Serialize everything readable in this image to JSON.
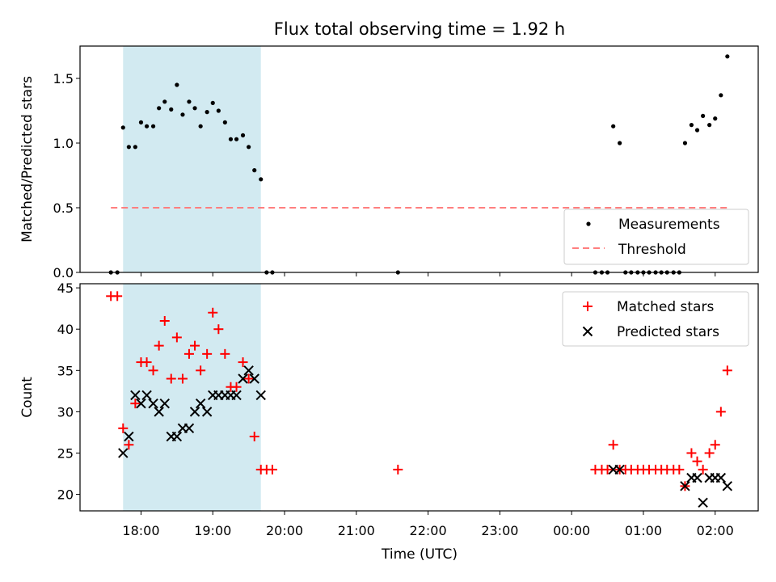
{
  "chart_data": {
    "type": "scatter",
    "title": "Flux total observing time = 1.92 h",
    "xlabel": "Time (UTC)",
    "x_unit": "hours since 18:00 UTC",
    "xlim": [
      -0.85,
      8.6
    ],
    "x_ticks": [
      {
        "value": 0,
        "label": "18:00"
      },
      {
        "value": 1,
        "label": "19:00"
      },
      {
        "value": 2,
        "label": "20:00"
      },
      {
        "value": 3,
        "label": "21:00"
      },
      {
        "value": 4,
        "label": "22:00"
      },
      {
        "value": 5,
        "label": "23:00"
      },
      {
        "value": 6,
        "label": "00:00"
      },
      {
        "value": 7,
        "label": "01:00"
      },
      {
        "value": 8,
        "label": "02:00"
      }
    ],
    "shaded_span": {
      "x_start": -0.25,
      "x_end": 1.67,
      "color": "#add8e6"
    },
    "panels": [
      {
        "ylabel": "Matched/Predicted stars",
        "ylim": [
          0,
          1.75
        ],
        "y_ticks": [
          {
            "value": 0,
            "label": "0.0"
          },
          {
            "value": 0.5,
            "label": "0.5"
          },
          {
            "value": 1.0,
            "label": "1.0"
          },
          {
            "value": 1.5,
            "label": "1.5"
          }
        ],
        "legend": {
          "position": "lower-right"
        },
        "series": [
          {
            "name": "Measurements",
            "marker": "dot",
            "color": "#000000",
            "points": [
              [
                -0.42,
                0.0
              ],
              [
                -0.33,
                0.0
              ],
              [
                -0.25,
                1.12
              ],
              [
                -0.17,
                0.97
              ],
              [
                -0.08,
                0.97
              ],
              [
                0.0,
                1.16
              ],
              [
                0.08,
                1.13
              ],
              [
                0.17,
                1.13
              ],
              [
                0.25,
                1.27
              ],
              [
                0.33,
                1.32
              ],
              [
                0.42,
                1.26
              ],
              [
                0.5,
                1.45
              ],
              [
                0.58,
                1.22
              ],
              [
                0.67,
                1.32
              ],
              [
                0.75,
                1.27
              ],
              [
                0.83,
                1.13
              ],
              [
                0.92,
                1.24
              ],
              [
                1.0,
                1.31
              ],
              [
                1.08,
                1.25
              ],
              [
                1.17,
                1.16
              ],
              [
                1.25,
                1.03
              ],
              [
                1.33,
                1.03
              ],
              [
                1.42,
                1.06
              ],
              [
                1.5,
                0.97
              ],
              [
                1.58,
                0.79
              ],
              [
                1.67,
                0.72
              ],
              [
                1.75,
                0.0
              ],
              [
                1.83,
                0.0
              ],
              [
                3.58,
                0.0
              ],
              [
                6.33,
                0.0
              ],
              [
                6.42,
                0.0
              ],
              [
                6.5,
                0.0
              ],
              [
                6.58,
                1.13
              ],
              [
                6.67,
                1.0
              ],
              [
                6.75,
                0.0
              ],
              [
                6.83,
                0.0
              ],
              [
                6.92,
                0.0
              ],
              [
                7.0,
                0.0
              ],
              [
                7.08,
                0.0
              ],
              [
                7.17,
                0.0
              ],
              [
                7.25,
                0.0
              ],
              [
                7.33,
                0.0
              ],
              [
                7.42,
                0.0
              ],
              [
                7.5,
                0.0
              ],
              [
                7.58,
                1.0
              ],
              [
                7.67,
                1.14
              ],
              [
                7.75,
                1.1
              ],
              [
                7.83,
                1.21
              ],
              [
                7.92,
                1.14
              ],
              [
                8.0,
                1.19
              ],
              [
                8.08,
                1.37
              ],
              [
                8.17,
                1.67
              ]
            ]
          },
          {
            "name": "Threshold",
            "marker": "dashed-line",
            "color": "#ff7f7f",
            "y": 0.5,
            "x_range": [
              -0.42,
              8.17
            ]
          }
        ]
      },
      {
        "ylabel": "Count",
        "ylim": [
          18,
          45.5
        ],
        "y_ticks": [
          {
            "value": 20,
            "label": "20"
          },
          {
            "value": 25,
            "label": "25"
          },
          {
            "value": 30,
            "label": "30"
          },
          {
            "value": 35,
            "label": "35"
          },
          {
            "value": 40,
            "label": "40"
          },
          {
            "value": 45,
            "label": "45"
          }
        ],
        "legend": {
          "position": "top-right"
        },
        "series": [
          {
            "name": "Matched stars",
            "marker": "plus",
            "color": "#ff0000",
            "points": [
              [
                -0.42,
                44
              ],
              [
                -0.33,
                44
              ],
              [
                -0.25,
                28
              ],
              [
                -0.17,
                26
              ],
              [
                -0.08,
                31
              ],
              [
                0.0,
                36
              ],
              [
                0.08,
                36
              ],
              [
                0.17,
                35
              ],
              [
                0.25,
                38
              ],
              [
                0.33,
                41
              ],
              [
                0.42,
                34
              ],
              [
                0.5,
                39
              ],
              [
                0.58,
                34
              ],
              [
                0.67,
                37
              ],
              [
                0.75,
                38
              ],
              [
                0.83,
                35
              ],
              [
                0.92,
                37
              ],
              [
                1.0,
                42
              ],
              [
                1.08,
                40
              ],
              [
                1.17,
                37
              ],
              [
                1.25,
                33
              ],
              [
                1.33,
                33
              ],
              [
                1.42,
                36
              ],
              [
                1.5,
                34
              ],
              [
                1.58,
                27
              ],
              [
                1.67,
                23
              ],
              [
                1.75,
                23
              ],
              [
                1.83,
                23
              ],
              [
                3.58,
                23
              ],
              [
                6.33,
                23
              ],
              [
                6.42,
                23
              ],
              [
                6.5,
                23
              ],
              [
                6.58,
                26
              ],
              [
                6.67,
                23
              ],
              [
                6.75,
                23
              ],
              [
                6.83,
                23
              ],
              [
                6.92,
                23
              ],
              [
                7.0,
                23
              ],
              [
                7.08,
                23
              ],
              [
                7.17,
                23
              ],
              [
                7.25,
                23
              ],
              [
                7.33,
                23
              ],
              [
                7.42,
                23
              ],
              [
                7.5,
                23
              ],
              [
                7.58,
                21
              ],
              [
                7.67,
                25
              ],
              [
                7.75,
                24
              ],
              [
                7.83,
                23
              ],
              [
                7.92,
                25
              ],
              [
                8.0,
                26
              ],
              [
                8.08,
                30
              ],
              [
                8.17,
                35
              ]
            ]
          },
          {
            "name": "Predicted stars",
            "marker": "x",
            "color": "#000000",
            "points": [
              [
                -0.25,
                25
              ],
              [
                -0.17,
                27
              ],
              [
                -0.08,
                32
              ],
              [
                0.0,
                31
              ],
              [
                0.08,
                32
              ],
              [
                0.17,
                31
              ],
              [
                0.25,
                30
              ],
              [
                0.33,
                31
              ],
              [
                0.42,
                27
              ],
              [
                0.5,
                27
              ],
              [
                0.58,
                28
              ],
              [
                0.67,
                28
              ],
              [
                0.75,
                30
              ],
              [
                0.83,
                31
              ],
              [
                0.92,
                30
              ],
              [
                1.0,
                32
              ],
              [
                1.08,
                32
              ],
              [
                1.17,
                32
              ],
              [
                1.25,
                32
              ],
              [
                1.33,
                32
              ],
              [
                1.42,
                34
              ],
              [
                1.5,
                35
              ],
              [
                1.58,
                34
              ],
              [
                1.67,
                32
              ],
              [
                6.58,
                23
              ],
              [
                6.67,
                23
              ],
              [
                7.58,
                21
              ],
              [
                7.67,
                22
              ],
              [
                7.75,
                22
              ],
              [
                7.83,
                19
              ],
              [
                7.92,
                22
              ],
              [
                8.0,
                22
              ],
              [
                8.08,
                22
              ],
              [
                8.17,
                21
              ]
            ]
          }
        ]
      }
    ]
  }
}
